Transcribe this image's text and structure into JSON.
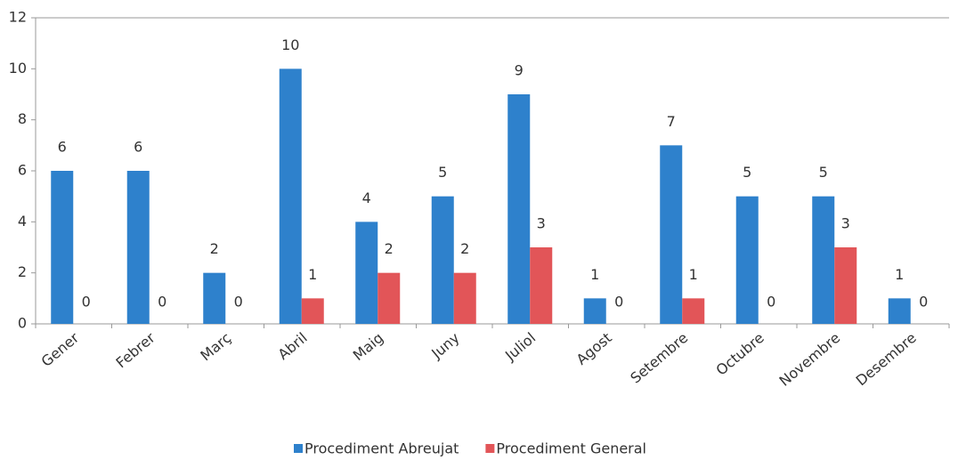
{
  "chart_data": {
    "type": "bar",
    "categories": [
      "Gener",
      "Febrer",
      "Març",
      "Abril",
      "Maig",
      "Juny",
      "Juliol",
      "Agost",
      "Setembre",
      "Octubre",
      "Novembre",
      "Desembre"
    ],
    "series": [
      {
        "name": "Procediment Abreujat",
        "color": "#2e81cc",
        "values": [
          6,
          6,
          2,
          10,
          4,
          5,
          9,
          1,
          7,
          5,
          5,
          1
        ]
      },
      {
        "name": "Procediment General",
        "color": "#e25558",
        "values": [
          0,
          0,
          0,
          1,
          2,
          2,
          3,
          0,
          1,
          0,
          3,
          0
        ]
      }
    ],
    "ylim": [
      0,
      12
    ],
    "yticks": [
      0,
      2,
      4,
      6,
      8,
      10,
      12
    ],
    "grid": false,
    "legend": "bottom"
  }
}
